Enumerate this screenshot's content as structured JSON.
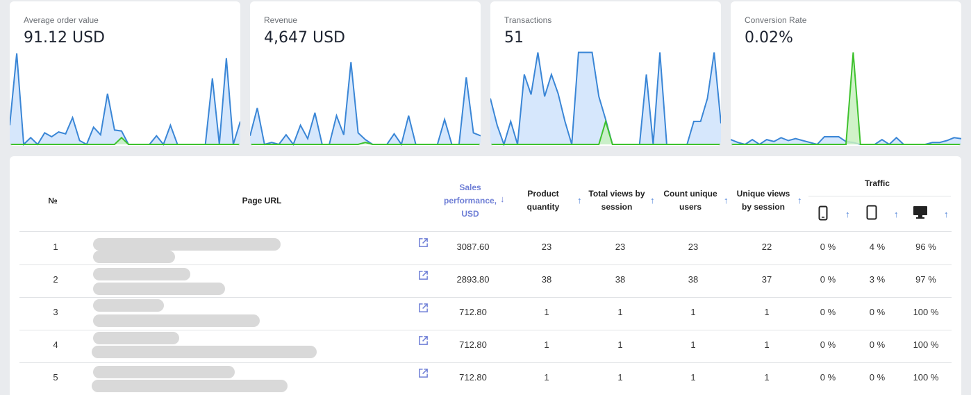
{
  "cards": [
    {
      "title": "Average order value",
      "value": "91.12 USD",
      "blue": [
        0.2,
        0.95,
        0,
        0.07,
        0,
        0.12,
        0.08,
        0.13,
        0.11,
        0.28,
        0.04,
        0,
        0.18,
        0.1,
        0.53,
        0.15,
        0.14,
        0,
        0,
        0,
        0,
        0.09,
        0,
        0.2,
        0,
        0,
        0,
        0,
        0,
        0.69,
        0,
        0.9,
        0,
        0.24
      ],
      "green": [
        0,
        0,
        0,
        0,
        0,
        0,
        0,
        0,
        0,
        0,
        0,
        0,
        0,
        0,
        0,
        0,
        0.07,
        0,
        0,
        0,
        0,
        0,
        0,
        0,
        0,
        0,
        0,
        0,
        0,
        0,
        0,
        0,
        0,
        0
      ]
    },
    {
      "title": "Revenue",
      "value": "4,647 USD",
      "blue": [
        0.09,
        0.38,
        0,
        0.02,
        0,
        0.1,
        0,
        0.2,
        0.06,
        0.33,
        0,
        0,
        0.3,
        0.1,
        0.86,
        0.12,
        0.05,
        0,
        0,
        0,
        0.11,
        0,
        0.3,
        0,
        0,
        0,
        0,
        0.26,
        0,
        0,
        0.7,
        0.12,
        0.09
      ],
      "green": [
        0,
        0,
        0,
        0,
        0,
        0,
        0,
        0,
        0,
        0,
        0,
        0,
        0,
        0,
        0,
        0,
        0.02,
        0,
        0,
        0,
        0,
        0,
        0,
        0,
        0,
        0,
        0,
        0,
        0,
        0,
        0,
        0,
        0
      ]
    },
    {
      "title": "Transactions",
      "value": "51",
      "blue": [
        0.48,
        0.2,
        0,
        0.24,
        0,
        0.73,
        0.52,
        0.96,
        0.5,
        0.73,
        0.53,
        0.24,
        0,
        0.96,
        0.96,
        0.96,
        0.5,
        0.26,
        0,
        0,
        0,
        0,
        0,
        0.73,
        0,
        0.96,
        0,
        0,
        0,
        0,
        0.24,
        0.24,
        0.48,
        0.96,
        0.22
      ],
      "green": [
        0,
        0,
        0,
        0,
        0,
        0,
        0,
        0,
        0,
        0,
        0,
        0,
        0,
        0,
        0,
        0,
        0,
        0.24,
        0,
        0,
        0,
        0,
        0,
        0,
        0,
        0,
        0,
        0,
        0,
        0,
        0,
        0,
        0,
        0,
        0
      ]
    },
    {
      "title": "Conversion Rate",
      "value": "0.02%",
      "blue": [
        0.05,
        0.02,
        0,
        0.05,
        0,
        0.05,
        0.03,
        0.07,
        0.04,
        0.06,
        0.04,
        0.02,
        0,
        0.08,
        0.08,
        0.08,
        0.03,
        0.02,
        0,
        0,
        0,
        0.05,
        0,
        0.07,
        0,
        0,
        0,
        0,
        0.02,
        0.02,
        0.04,
        0.07,
        0.06
      ],
      "green": [
        0,
        0,
        0,
        0,
        0,
        0,
        0,
        0,
        0,
        0,
        0,
        0,
        0,
        0,
        0,
        0,
        0,
        0.96,
        0,
        0,
        0,
        0,
        0,
        0,
        0,
        0,
        0,
        0,
        0,
        0,
        0,
        0,
        0
      ]
    }
  ],
  "table": {
    "headers": {
      "no": "№",
      "url": "Page URL",
      "sales": "Sales performance, USD",
      "qty": "Product quantity",
      "views": "Total views by session",
      "users": "Count unique users",
      "unique": "Unique views by session",
      "traffic": "Traffic"
    },
    "sort_icons": {
      "desc": "↓",
      "asc": "↑"
    },
    "device_icons": [
      "mobile-icon",
      "tablet-icon",
      "desktop-icon"
    ],
    "rows": [
      {
        "no": "1",
        "sales": "3087.60",
        "qty": "23",
        "views": "23",
        "users": "23",
        "unique": "22",
        "mobile": "0 %",
        "tablet": "4 %",
        "desktop": "96 %"
      },
      {
        "no": "2",
        "sales": "2893.80",
        "qty": "38",
        "views": "38",
        "users": "38",
        "unique": "37",
        "mobile": "0 %",
        "tablet": "3 %",
        "desktop": "97 %"
      },
      {
        "no": "3",
        "sales": "712.80",
        "qty": "1",
        "views": "1",
        "users": "1",
        "unique": "1",
        "mobile": "0 %",
        "tablet": "0 %",
        "desktop": "100 %"
      },
      {
        "no": "4",
        "sales": "712.80",
        "qty": "1",
        "views": "1",
        "users": "1",
        "unique": "1",
        "mobile": "0 %",
        "tablet": "0 %",
        "desktop": "100 %"
      },
      {
        "no": "5",
        "sales": "712.80",
        "qty": "1",
        "views": "1",
        "users": "1",
        "unique": "1",
        "mobile": "0 %",
        "tablet": "0 %",
        "desktop": "100 %"
      }
    ]
  },
  "colors": {
    "accent": "#6f7fd6",
    "line_blue": "#3a86d6",
    "fill_blue": "#cfe3fb",
    "line_green": "#3fc22e",
    "fill_green": "#c8f0c0"
  }
}
